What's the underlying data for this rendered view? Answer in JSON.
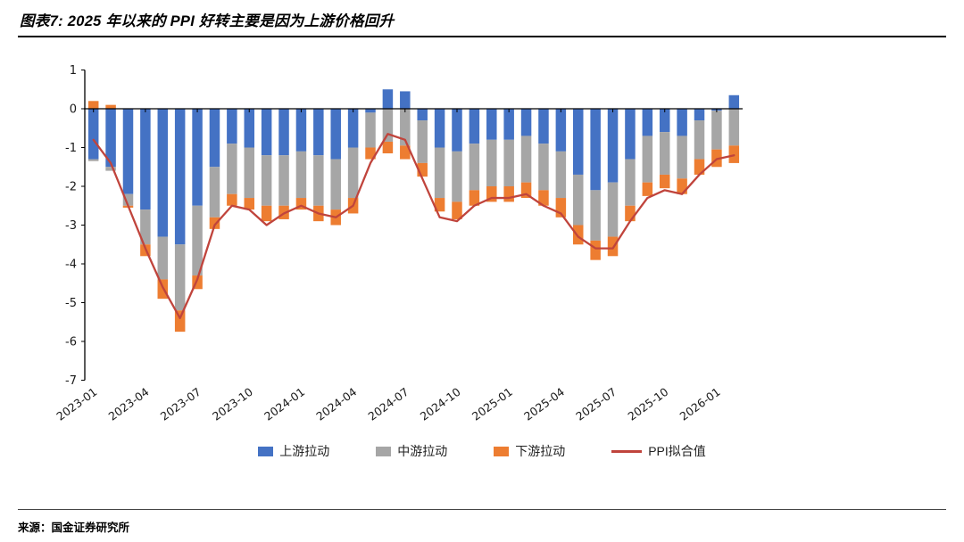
{
  "title": "图表7: 2025 年以来的 PPI 好转主要是因为上游价格回升",
  "source": "来源：国金证券研究所",
  "legend": {
    "upstream": "上游拉动",
    "midstream": "中游拉动",
    "downstream": "下游拉动",
    "ppi": "PPI拟合值"
  },
  "chart_data": {
    "type": "bar",
    "subtype": "stacked-bar-with-line",
    "title": "图表7: 2025 年以来的 PPI 好转主要是因为上游价格回升",
    "xlabel": "",
    "ylabel": "",
    "ylim": [
      -7,
      1
    ],
    "y_ticks": [
      1,
      0,
      -1,
      -2,
      -3,
      -4,
      -5,
      -6,
      -7
    ],
    "grid": false,
    "legend_position": "bottom",
    "x_tick_every": 3,
    "x_tick_labels": [
      "2023-01",
      "2023-04",
      "2023-07",
      "2023-10",
      "2024-01",
      "2024-04",
      "2024-07",
      "2024-10",
      "2025-01",
      "2025-04",
      "2025-07",
      "2025-10",
      "2026-01"
    ],
    "months": [
      "2023-01",
      "2023-02",
      "2023-03",
      "2023-04",
      "2023-05",
      "2023-06",
      "2023-07",
      "2023-08",
      "2023-09",
      "2023-10",
      "2023-11",
      "2023-12",
      "2024-01",
      "2024-02",
      "2024-03",
      "2024-04",
      "2024-05",
      "2024-06",
      "2024-07",
      "2024-08",
      "2024-09",
      "2024-10",
      "2024-11",
      "2024-12",
      "2025-01",
      "2025-02",
      "2025-03",
      "2025-04",
      "2025-05",
      "2025-06",
      "2025-07",
      "2025-08",
      "2025-09",
      "2025-10",
      "2025-11",
      "2025-12",
      "2026-01",
      "2026-02"
    ],
    "series": [
      {
        "name": "上游拉动",
        "key": "upstream",
        "color": "#4472C4",
        "values": [
          -1.3,
          -1.5,
          -2.2,
          -2.6,
          -3.3,
          -3.5,
          -2.5,
          -1.5,
          -0.9,
          -1.0,
          -1.2,
          -1.2,
          -1.1,
          -1.2,
          -1.3,
          -1.0,
          -0.1,
          0.5,
          0.45,
          -0.3,
          -1.0,
          -1.1,
          -0.9,
          -0.8,
          -0.8,
          -0.7,
          -0.9,
          -1.1,
          -1.7,
          -2.1,
          -1.9,
          -1.3,
          -0.7,
          -0.6,
          -0.7,
          -0.3,
          -0.05,
          0.35
        ]
      },
      {
        "name": "中游拉动",
        "key": "midstream",
        "color": "#A6A6A6",
        "values": [
          -0.05,
          -0.1,
          -0.3,
          -0.9,
          -1.1,
          -1.7,
          -1.8,
          -1.3,
          -1.3,
          -1.3,
          -1.3,
          -1.3,
          -1.2,
          -1.3,
          -1.3,
          -1.3,
          -0.9,
          -0.85,
          -0.95,
          -1.1,
          -1.3,
          -1.3,
          -1.2,
          -1.2,
          -1.2,
          -1.2,
          -1.2,
          -1.2,
          -1.3,
          -1.3,
          -1.4,
          -1.2,
          -1.2,
          -1.1,
          -1.1,
          -1.0,
          -1.0,
          -0.95
        ]
      },
      {
        "name": "下游拉动",
        "key": "downstream",
        "color": "#ED7D31",
        "values": [
          0.2,
          0.1,
          -0.05,
          -0.3,
          -0.5,
          -0.55,
          -0.35,
          -0.3,
          -0.3,
          -0.3,
          -0.4,
          -0.35,
          -0.3,
          -0.4,
          -0.4,
          -0.4,
          -0.3,
          -0.3,
          -0.35,
          -0.35,
          -0.35,
          -0.45,
          -0.4,
          -0.4,
          -0.4,
          -0.4,
          -0.4,
          -0.5,
          -0.5,
          -0.5,
          -0.5,
          -0.4,
          -0.35,
          -0.35,
          -0.4,
          -0.4,
          -0.45,
          -0.45
        ]
      }
    ],
    "line": {
      "name": "PPI拟合值",
      "color": "#C0443C",
      "values": [
        -0.8,
        -1.4,
        -2.5,
        -3.6,
        -4.6,
        -5.4,
        -4.4,
        -3.0,
        -2.5,
        -2.6,
        -3.0,
        -2.7,
        -2.5,
        -2.7,
        -2.8,
        -2.5,
        -1.4,
        -0.65,
        -0.8,
        -1.8,
        -2.8,
        -2.9,
        -2.5,
        -2.3,
        -2.3,
        -2.2,
        -2.5,
        -2.7,
        -3.3,
        -3.6,
        -3.6,
        -2.9,
        -2.3,
        -2.1,
        -2.2,
        -1.7,
        -1.3,
        -1.2
      ]
    }
  }
}
